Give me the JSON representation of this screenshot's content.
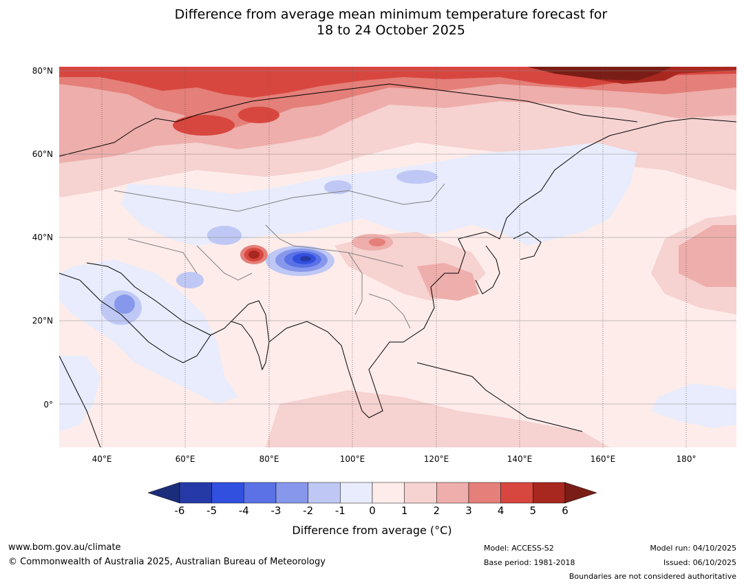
{
  "title": {
    "line1": "Difference from average mean minimum temperature forecast for",
    "line2": "18 to 24 October 2025"
  },
  "map": {
    "lat_labels": [
      "80°N",
      "60°N",
      "40°N",
      "20°N",
      "0°"
    ],
    "lon_labels": [
      "40°E",
      "60°E",
      "80°E",
      "100°E",
      "120°E",
      "140°E",
      "160°E",
      "180°"
    ]
  },
  "colorbar": {
    "ticks": [
      "-6",
      "-5",
      "-4",
      "-3",
      "-2",
      "-1",
      "0",
      "1",
      "2",
      "3",
      "4",
      "5",
      "6"
    ],
    "colors": [
      "#263aa7",
      "#3150e0",
      "#5a72e6",
      "#8798ec",
      "#bfc8f5",
      "#e8ecfc",
      "#fdecea",
      "#f6d2d0",
      "#eeaeab",
      "#e47f79",
      "#d8473f",
      "#a8271f"
    ],
    "under_color": "#1b2d7a",
    "over_color": "#7a1d16",
    "label": "Difference from average (°C)"
  },
  "footer": {
    "website": "www.bom.gov.au/climate",
    "copyright": "© Commonwealth of Australia 2025, Australian Bureau of Meteorology",
    "model": "Model: ACCESS-S2",
    "base_period": "Base period: 1981-2018",
    "model_run": "Model run: 04/10/2025",
    "issued": "Issued: 06/10/2025",
    "boundaries": "Boundaries are not considered authoritative"
  }
}
